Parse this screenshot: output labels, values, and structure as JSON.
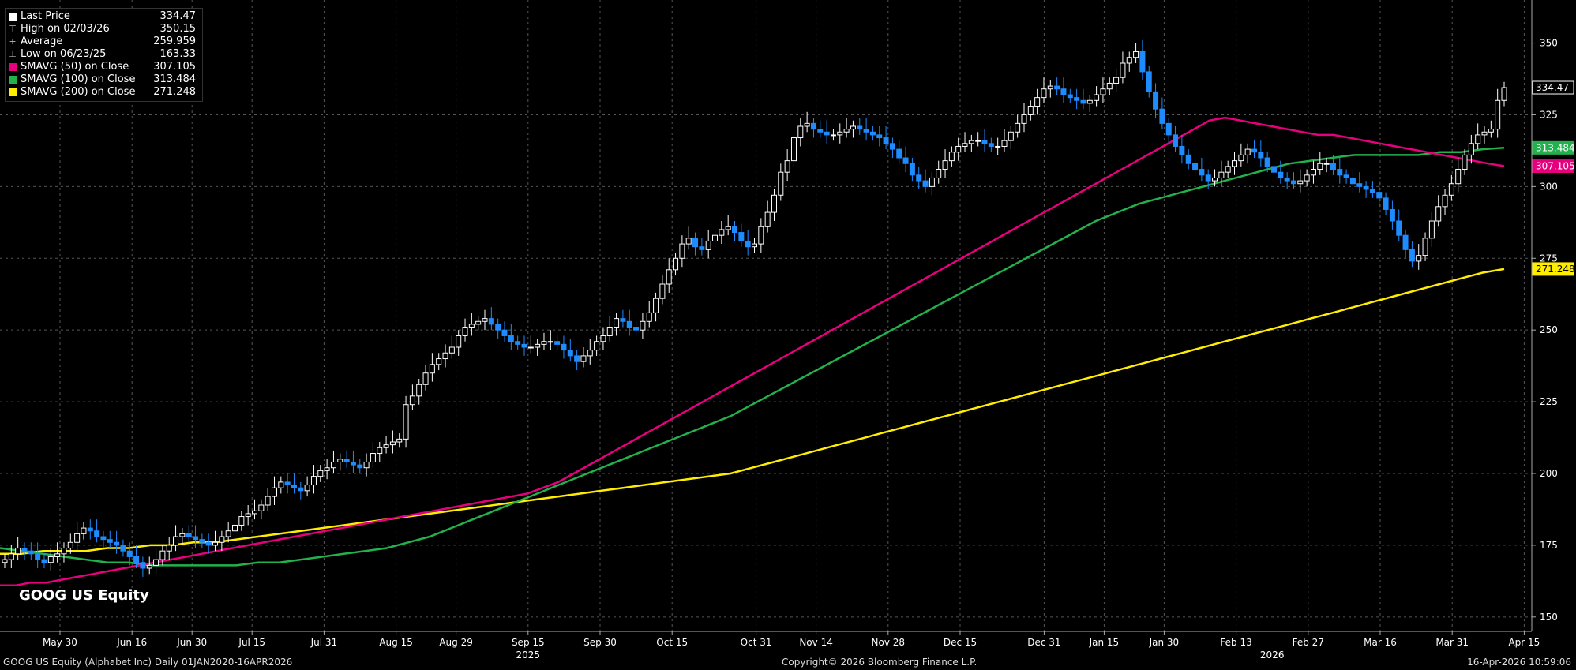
{
  "legend": [
    {
      "label": "Last Price",
      "value": "334.47",
      "color": "#ffffff",
      "glyph": ""
    },
    {
      "label": "High on 02/03/26",
      "value": "350.15",
      "color": "",
      "glyph": "⊤"
    },
    {
      "label": "Average",
      "value": "259.959",
      "color": "",
      "glyph": "+"
    },
    {
      "label": "Low on 06/23/25",
      "value": "163.33",
      "color": "",
      "glyph": "⊥"
    },
    {
      "label": "SMAVG (50)  on Close",
      "value": "307.105",
      "color": "#e6007e",
      "glyph": ""
    },
    {
      "label": "SMAVG (100)  on Close",
      "value": "313.484",
      "color": "#22b14c",
      "glyph": ""
    },
    {
      "label": "SMAVG (200)  on Close",
      "value": "271.248",
      "color": "#ffed00",
      "glyph": ""
    }
  ],
  "ticker": "GOOG US Equity",
  "footer": {
    "left": "GOOG US Equity (Alphabet Inc) Daily 01JAN2020-16APR2026",
    "center": "Copyright© 2026 Bloomberg Finance L.P.",
    "right": "16-Apr-2026 10:59:06"
  },
  "chart_data": {
    "type": "candlestick",
    "ylim": [
      145,
      365
    ],
    "y_ticks": [
      150,
      175,
      200,
      225,
      250,
      275,
      300,
      325,
      350
    ],
    "x_ticks": [
      {
        "label": "May 30",
        "x": 0.05
      },
      {
        "label": "Jun 16",
        "x": 0.11
      },
      {
        "label": "Jun 30",
        "x": 0.16
      },
      {
        "label": "Jul 15",
        "x": 0.21
      },
      {
        "label": "Jul 31",
        "x": 0.27
      },
      {
        "label": "Aug 15",
        "x": 0.33
      },
      {
        "label": "Aug 29",
        "x": 0.38
      },
      {
        "label": "Sep 15",
        "x": 0.44
      },
      {
        "label": "Sep 30",
        "x": 0.5
      },
      {
        "label": "Oct 15",
        "x": 0.56
      },
      {
        "label": "Oct 31",
        "x": 0.63
      },
      {
        "label": "Nov 14",
        "x": 0.68
      },
      {
        "label": "Nov 28",
        "x": 0.74
      },
      {
        "label": "Dec 15",
        "x": 0.8
      },
      {
        "label": "Dec 31",
        "x": 0.87
      },
      {
        "label": "Jan 15",
        "x": 0.92
      },
      {
        "label": "Jan 30",
        "x": 0.97
      },
      {
        "label": "Feb 13",
        "x": 1.03
      },
      {
        "label": "Feb 27",
        "x": 1.09
      },
      {
        "label": "Mar 16",
        "x": 1.15
      },
      {
        "label": "Mar 31",
        "x": 1.21
      },
      {
        "label": "Apr 15",
        "x": 1.27
      }
    ],
    "year_labels": [
      {
        "label": "2025",
        "x": 0.44
      },
      {
        "label": "2026",
        "x": 1.06
      }
    ],
    "close": [
      170,
      172,
      174,
      173,
      172,
      170,
      169,
      171,
      172,
      174,
      176,
      179,
      181,
      180,
      178,
      177,
      176,
      175,
      173,
      171,
      169,
      167,
      168,
      170,
      173,
      175,
      178,
      179,
      178,
      177,
      176,
      175,
      176,
      178,
      180,
      182,
      185,
      186,
      187,
      189,
      192,
      195,
      197,
      196,
      195,
      194,
      196,
      199,
      201,
      202,
      204,
      205,
      204,
      203,
      202,
      204,
      207,
      209,
      210,
      211,
      212,
      224,
      227,
      231,
      235,
      238,
      240,
      242,
      244,
      248,
      251,
      252,
      253,
      254,
      252,
      250,
      248,
      246,
      245,
      244,
      244,
      245,
      246,
      246,
      245,
      243,
      241,
      239,
      241,
      243,
      246,
      248,
      251,
      254,
      253,
      251,
      250,
      253,
      256,
      261,
      266,
      271,
      275,
      280,
      282,
      279,
      278,
      281,
      283,
      285,
      286,
      284,
      281,
      279,
      280,
      286,
      291,
      297,
      305,
      309,
      317,
      321,
      322,
      320,
      319,
      318,
      318,
      319,
      320,
      321,
      320,
      319,
      318,
      317,
      315,
      313,
      310,
      308,
      304,
      302,
      300,
      303,
      306,
      309,
      312,
      314,
      315,
      316,
      316,
      315,
      314,
      314,
      316,
      319,
      322,
      325,
      328,
      331,
      334,
      335,
      334,
      332,
      331,
      330,
      329,
      330,
      332,
      334,
      336,
      338,
      343,
      345,
      347,
      340,
      333,
      327,
      322,
      318,
      314,
      311,
      308,
      306,
      304,
      302,
      303,
      305,
      307,
      309,
      311,
      313,
      312,
      310,
      307,
      305,
      303,
      302,
      301,
      302,
      304,
      306,
      308,
      308,
      306,
      304,
      303,
      301,
      300,
      299,
      298,
      296,
      292,
      288,
      283,
      278,
      274,
      276,
      282,
      288,
      293,
      297,
      301,
      306,
      311,
      315,
      318,
      319,
      320,
      330,
      334.47
    ],
    "sma50": [
      161,
      161,
      162,
      162,
      163,
      164,
      165,
      166,
      167,
      168,
      169,
      170,
      171,
      172,
      173,
      174,
      175,
      176,
      177,
      178,
      179,
      180,
      181,
      182,
      183,
      184,
      185,
      186,
      187,
      188,
      189,
      190,
      191,
      192,
      193,
      195,
      197,
      200,
      203,
      206,
      209,
      212,
      215,
      218,
      221,
      224,
      227,
      230,
      233,
      236,
      239,
      242,
      245,
      248,
      251,
      254,
      257,
      260,
      263,
      266,
      269,
      272,
      275,
      278,
      281,
      284,
      287,
      290,
      293,
      296,
      299,
      302,
      305,
      308,
      311,
      314,
      317,
      320,
      323,
      324,
      323,
      322,
      321,
      320,
      319,
      318,
      318,
      317,
      316,
      315,
      314,
      313,
      312,
      311,
      310,
      309,
      308,
      307.105
    ],
    "sma100": [
      174,
      173,
      172,
      171,
      170,
      169,
      169,
      168,
      168,
      168,
      168,
      168,
      169,
      169,
      170,
      171,
      172,
      173,
      174,
      176,
      178,
      181,
      184,
      187,
      190,
      193,
      196,
      199,
      202,
      205,
      208,
      211,
      214,
      217,
      220,
      224,
      228,
      232,
      236,
      240,
      244,
      248,
      252,
      256,
      260,
      264,
      268,
      272,
      276,
      280,
      284,
      288,
      291,
      294,
      296,
      298,
      300,
      302,
      304,
      306,
      308,
      309,
      310,
      311,
      311,
      311,
      311,
      312,
      312,
      313,
      313.484
    ],
    "sma200": [
      172,
      172,
      173,
      173,
      173,
      174,
      174,
      175,
      175,
      176,
      176,
      177,
      178,
      179,
      180,
      181,
      182,
      183,
      184,
      185,
      186,
      187,
      188,
      189,
      190,
      191,
      192,
      193,
      194,
      195,
      196,
      197,
      198,
      199,
      200,
      202,
      204,
      206,
      208,
      210,
      212,
      214,
      216,
      218,
      220,
      222,
      224,
      226,
      228,
      230,
      232,
      234,
      236,
      238,
      240,
      242,
      244,
      246,
      248,
      250,
      252,
      254,
      256,
      258,
      260,
      262,
      264,
      266,
      268,
      270,
      271.248
    ]
  },
  "colors": {
    "up_body": "#000000",
    "up_edge": "#ffffff",
    "down_body": "#1e8bff",
    "sma50": "#e6007e",
    "sma100": "#22b14c",
    "sma200": "#ffed00",
    "grid": "#555555",
    "axis_text": "#ffffff",
    "last_price_bg": "#000000"
  }
}
